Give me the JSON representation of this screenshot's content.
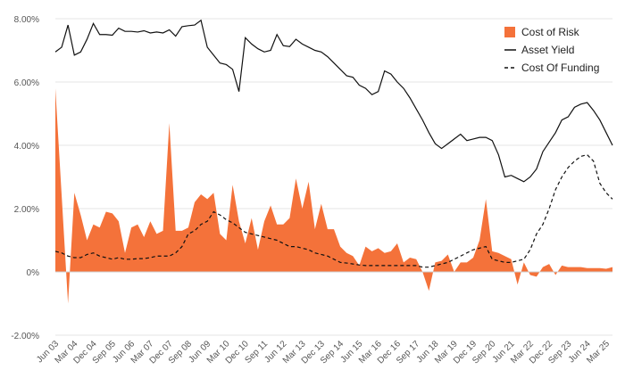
{
  "chart_data": {
    "type": "area",
    "title": "",
    "xlabel": "",
    "ylabel": "",
    "ylim": [
      -2,
      8
    ],
    "y_ticks": [
      "-2.00%",
      "0%",
      "2.00%",
      "4.00%",
      "6.00%",
      "8.00%"
    ],
    "y_tick_values": [
      -2,
      0,
      2,
      4,
      6,
      8
    ],
    "grid": "horizontal",
    "legend_position": "top-right",
    "x_ticks": [
      "Jun 03",
      "Mar 04",
      "Dec 04",
      "Sep 05",
      "Jun 06",
      "Mar 07",
      "Dec 07",
      "Sep 08",
      "Jun 09",
      "Mar 10",
      "Dec 10",
      "Sep 11",
      "Jun 12",
      "Mar 13",
      "Dec 13",
      "Sep 14",
      "Jun 15",
      "Mar 16",
      "Dec 16",
      "Sep 17",
      "Jun 18",
      "Mar 19",
      "Dec 19",
      "Sep 20",
      "Jun 21",
      "Mar 22",
      "Dec 22",
      "Sep 23",
      "Jun 24",
      "Mar 25"
    ],
    "x": [
      "Jun 03",
      "Sep 03",
      "Dec 03",
      "Mar 04",
      "Jun 04",
      "Sep 04",
      "Dec 04",
      "Mar 05",
      "Jun 05",
      "Sep 05",
      "Dec 05",
      "Mar 06",
      "Jun 06",
      "Sep 06",
      "Dec 06",
      "Mar 07",
      "Jun 07",
      "Sep 07",
      "Dec 07",
      "Mar 08",
      "Jun 08",
      "Sep 08",
      "Dec 08",
      "Mar 09",
      "Jun 09",
      "Sep 09",
      "Dec 09",
      "Mar 10",
      "Jun 10",
      "Sep 10",
      "Dec 10",
      "Mar 11",
      "Jun 11",
      "Sep 11",
      "Dec 11",
      "Mar 12",
      "Jun 12",
      "Sep 12",
      "Dec 12",
      "Mar 13",
      "Jun 13",
      "Sep 13",
      "Dec 13",
      "Mar 14",
      "Jun 14",
      "Sep 14",
      "Dec 14",
      "Mar 15",
      "Jun 15",
      "Sep 15",
      "Dec 15",
      "Mar 16",
      "Jun 16",
      "Sep 16",
      "Dec 16",
      "Mar 17",
      "Jun 17",
      "Sep 17",
      "Dec 17",
      "Mar 18",
      "Jun 18",
      "Sep 18",
      "Dec 18",
      "Mar 19",
      "Jun 19",
      "Sep 19",
      "Dec 19",
      "Mar 20",
      "Jun 20",
      "Sep 20",
      "Dec 20",
      "Mar 21",
      "Jun 21",
      "Sep 21",
      "Dec 21",
      "Mar 22",
      "Jun 22",
      "Sep 22",
      "Dec 22",
      "Mar 23",
      "Jun 23",
      "Sep 23",
      "Dec 23",
      "Mar 24",
      "Jun 24",
      "Sep 24",
      "Dec 24",
      "Mar 25",
      "Jun 25"
    ],
    "series": [
      {
        "name": "Cost of Risk",
        "style": "area",
        "color": "#f4723a",
        "values": [
          5.8,
          2.4,
          -1.0,
          2.5,
          1.8,
          1.0,
          1.5,
          1.4,
          1.9,
          1.85,
          1.6,
          0.6,
          1.4,
          1.5,
          1.1,
          1.6,
          1.2,
          1.3,
          4.7,
          1.3,
          1.3,
          1.4,
          2.2,
          2.45,
          2.3,
          2.5,
          1.2,
          1.0,
          2.75,
          1.6,
          0.9,
          1.7,
          0.7,
          1.6,
          2.1,
          1.5,
          1.5,
          1.7,
          2.95,
          2.0,
          2.85,
          1.35,
          2.15,
          1.35,
          1.35,
          0.8,
          0.6,
          0.5,
          0.2,
          0.8,
          0.65,
          0.75,
          0.6,
          0.65,
          0.9,
          0.3,
          0.45,
          0.4,
          0.0,
          -0.6,
          0.3,
          0.35,
          0.55,
          0.0,
          0.3,
          0.3,
          0.45,
          1.0,
          2.3,
          0.65,
          0.6,
          0.5,
          0.4,
          -0.4,
          0.3,
          -0.1,
          -0.15,
          0.15,
          0.25,
          -0.1,
          0.2,
          0.15,
          0.15,
          0.15,
          0.12,
          0.12,
          0.12,
          0.1,
          0.15
        ]
      },
      {
        "name": "Asset Yield",
        "style": "solid",
        "color": "#111111",
        "values": [
          6.95,
          7.1,
          7.8,
          6.85,
          6.95,
          7.35,
          7.85,
          7.5,
          7.5,
          7.48,
          7.7,
          7.6,
          7.6,
          7.58,
          7.62,
          7.55,
          7.58,
          7.55,
          7.65,
          7.45,
          7.75,
          7.78,
          7.8,
          7.95,
          7.1,
          6.85,
          6.6,
          6.55,
          6.4,
          5.7,
          7.4,
          7.2,
          7.05,
          6.95,
          7.0,
          7.5,
          7.15,
          7.12,
          7.35,
          7.2,
          7.1,
          7.0,
          6.95,
          6.8,
          6.6,
          6.4,
          6.2,
          6.15,
          5.9,
          5.8,
          5.6,
          5.7,
          6.35,
          6.25,
          6.0,
          5.8,
          5.5,
          5.15,
          4.8,
          4.4,
          4.05,
          3.9,
          4.05,
          4.2,
          4.35,
          4.15,
          4.2,
          4.25,
          4.25,
          4.15,
          3.7,
          3.0,
          3.05,
          2.95,
          2.85,
          3.0,
          3.25,
          3.8,
          4.1,
          4.4,
          4.8,
          4.9,
          5.2,
          5.3,
          5.35,
          5.1,
          4.8,
          4.4,
          4.0
        ]
      },
      {
        "name": "Cost Of Funding",
        "style": "dashed",
        "color": "#111111",
        "values": [
          0.65,
          0.6,
          0.5,
          0.45,
          0.45,
          0.55,
          0.6,
          0.5,
          0.45,
          0.4,
          0.45,
          0.4,
          0.4,
          0.42,
          0.42,
          0.45,
          0.5,
          0.5,
          0.5,
          0.6,
          0.8,
          1.2,
          1.3,
          1.5,
          1.6,
          1.9,
          1.8,
          1.65,
          1.55,
          1.4,
          1.25,
          1.2,
          1.15,
          1.1,
          1.05,
          1.0,
          0.9,
          0.8,
          0.8,
          0.75,
          0.7,
          0.6,
          0.55,
          0.5,
          0.4,
          0.3,
          0.28,
          0.25,
          0.22,
          0.2,
          0.2,
          0.2,
          0.2,
          0.2,
          0.2,
          0.2,
          0.2,
          0.2,
          0.15,
          0.15,
          0.2,
          0.25,
          0.3,
          0.4,
          0.5,
          0.6,
          0.7,
          0.75,
          0.8,
          0.4,
          0.35,
          0.3,
          0.3,
          0.35,
          0.4,
          0.7,
          1.2,
          1.5,
          2.0,
          2.6,
          3.0,
          3.3,
          3.5,
          3.65,
          3.7,
          3.5,
          2.8,
          2.5,
          2.3
        ]
      }
    ]
  }
}
